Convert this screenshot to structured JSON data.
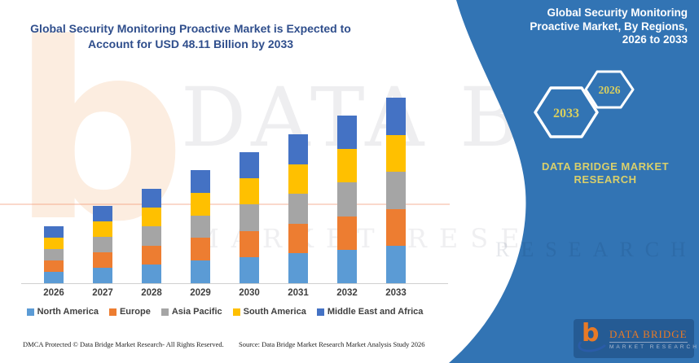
{
  "header": {
    "line1": "Global Security Monitoring Proactive Market is Expected to",
    "line2": "Account for USD 48.11 Billion by 2033"
  },
  "chart_data": {
    "type": "bar",
    "stacked": true,
    "title": "Global Security Monitoring Proactive Market is Expected to Account for USD 48.11 Billion by 2033",
    "unit": "USD Billion",
    "categories": [
      "2026",
      "2027",
      "2028",
      "2029",
      "2030",
      "2031",
      "2032",
      "2033"
    ],
    "series": [
      {
        "name": "North America",
        "color": "#5B9BD5",
        "values": [
          2.96,
          4.0,
          4.9,
          5.86,
          6.8,
          7.72,
          8.7,
          9.622
        ]
      },
      {
        "name": "Europe",
        "color": "#ED7D31",
        "values": [
          2.96,
          4.0,
          4.9,
          5.86,
          6.8,
          7.72,
          8.7,
          9.622
        ]
      },
      {
        "name": "Asia Pacific",
        "color": "#A5A5A5",
        "values": [
          2.96,
          4.0,
          4.9,
          5.86,
          6.8,
          7.72,
          8.7,
          9.622
        ]
      },
      {
        "name": "South America",
        "color": "#FFC000",
        "values": [
          2.96,
          4.0,
          4.9,
          5.86,
          6.8,
          7.72,
          8.7,
          9.622
        ]
      },
      {
        "name": "Middle East and Africa",
        "color": "#4472C4",
        "values": [
          2.96,
          4.0,
          4.9,
          5.86,
          6.8,
          7.72,
          8.7,
          9.622
        ]
      }
    ],
    "totals": [
      14.8,
      20.0,
      24.5,
      29.3,
      34.0,
      38.6,
      43.5,
      48.11
    ],
    "xlabel": "",
    "ylabel": "",
    "ylim": [
      0,
      50
    ],
    "y_axis_visible": false,
    "grid": false,
    "legend_position": "bottom"
  },
  "watermarks": {
    "big_letter": "b",
    "text_main": "DATA BRID",
    "text_sub": "MARKET RESEARCH",
    "panel_text": "RESEARCH"
  },
  "panel": {
    "title": [
      "Global Security Monitoring",
      "Proactive Market, By Regions,",
      "2026 to 2033"
    ],
    "hex_large_year": "2033",
    "hex_small_year": "2026",
    "brand_line1": "DATA BRIDGE MARKET",
    "brand_line2": "RESEARCH",
    "background_color": "#3274B4",
    "accent_text_color": "#D9CF5E"
  },
  "footer": {
    "dmca": "DMCA Protected © Data Bridge Market Research-  All Rights Reserved.",
    "source": "Source: Data Bridge Market Research  Market Analysis Study 2026"
  },
  "logo": {
    "brand": "DATA BRIDGE",
    "sub": "MARKET RESEARCH"
  }
}
